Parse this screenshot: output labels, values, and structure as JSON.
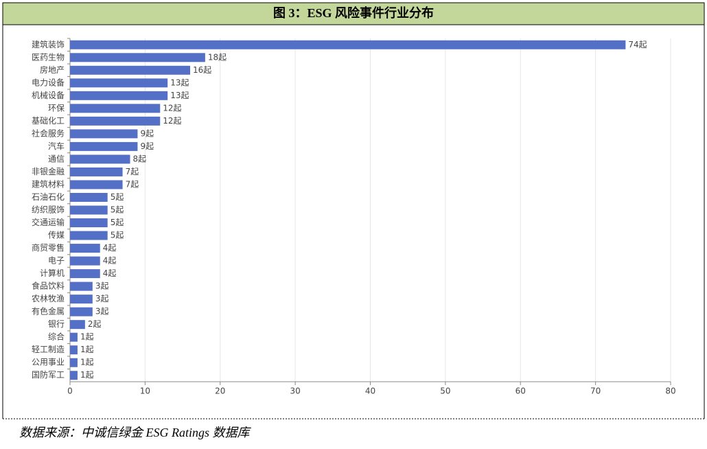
{
  "chart_data": {
    "type": "bar",
    "orientation": "horizontal",
    "title": "图 3：ESG 风险事件行业分布",
    "source": "数据来源：中诚信绿金 ESG Ratings 数据库",
    "categories": [
      "建筑装饰",
      "医药生物",
      "房地产",
      "电力设备",
      "机械设备",
      "环保",
      "基础化工",
      "社会服务",
      "汽车",
      "通信",
      "非银金融",
      "建筑材料",
      "石油石化",
      "纺织服饰",
      "交通运输",
      "传媒",
      "商贸零售",
      "电子",
      "计算机",
      "食品饮料",
      "农林牧渔",
      "有色金属",
      "银行",
      "综合",
      "轻工制造",
      "公用事业",
      "国防军工"
    ],
    "values": [
      74,
      18,
      16,
      13,
      13,
      12,
      12,
      9,
      9,
      8,
      7,
      7,
      5,
      5,
      5,
      5,
      4,
      4,
      4,
      3,
      3,
      3,
      2,
      1,
      1,
      1,
      1
    ],
    "value_labels": [
      "74起",
      "18起",
      "16起",
      "13起",
      "13起",
      "12起",
      "12起",
      "9起",
      "9起",
      "8起",
      "7起",
      "7起",
      "5起",
      "5起",
      "5起",
      "5起",
      "4起",
      "4起",
      "4起",
      "3起",
      "3起",
      "3起",
      "2起",
      "1起",
      "1起",
      "1起",
      "1起"
    ],
    "color": "#5470c6",
    "xlim": [
      0,
      80
    ],
    "xticks": [
      0,
      10,
      20,
      30,
      40,
      50,
      60,
      70,
      80
    ],
    "grid": true
  }
}
